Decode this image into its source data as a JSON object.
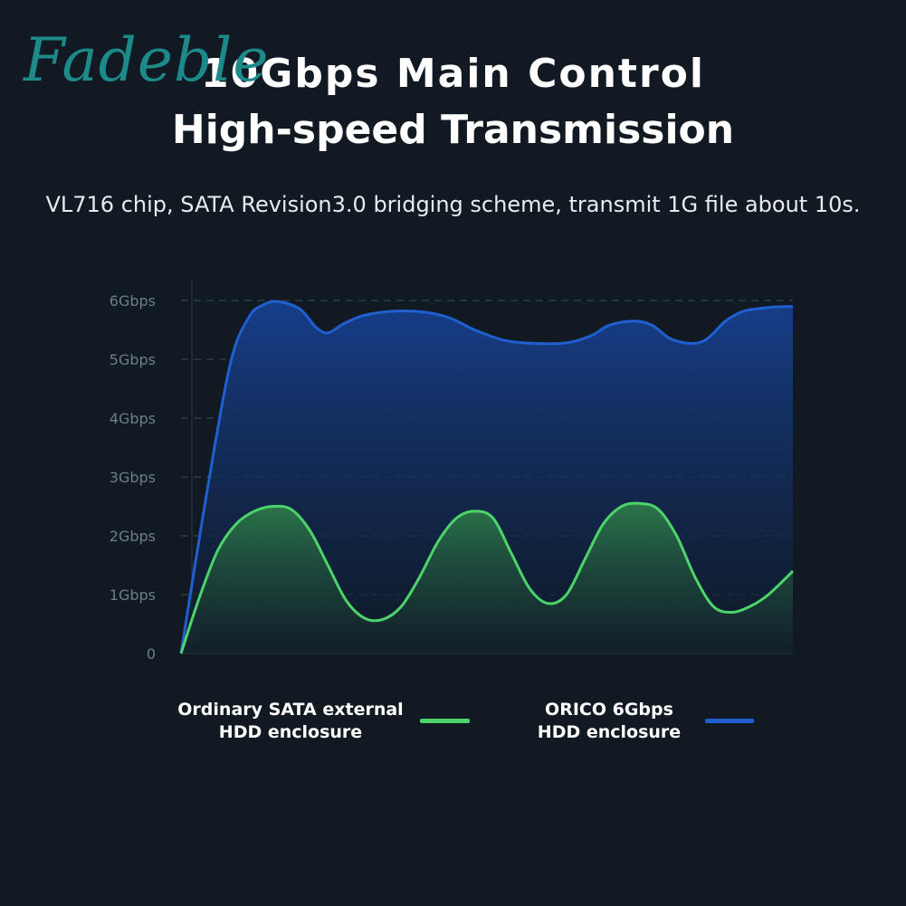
{
  "watermark": "Fadeble",
  "header": {
    "title_line1": "10Gbps Main Control",
    "title_line2": "High-speed Transmission",
    "subtitle": "VL716 chip, SATA Revision3.0 bridging scheme, transmit 1G file about 10s."
  },
  "chart_data": {
    "type": "area",
    "title": "",
    "xlabel": "",
    "ylabel": "",
    "yticks": [
      "0",
      "1Gbps",
      "2Gbps",
      "3Gbps",
      "4Gbps",
      "5Gbps",
      "6Gbps"
    ],
    "ylim": [
      0,
      6
    ],
    "xlim": [
      0,
      100
    ],
    "grid": true,
    "legend_position": "bottom",
    "series": [
      {
        "name": "ORICO 6Gbps HDD enclosure",
        "color": "#1f5fd0",
        "x": [
          0,
          4,
          8,
          11,
          13.5,
          16,
          19.5,
          22,
          24,
          26.5,
          30,
          35,
          40,
          44,
          48,
          53,
          58,
          63,
          67,
          70,
          74,
          77,
          80,
          83.5,
          86,
          89,
          92,
          96,
          100
        ],
        "y": [
          0,
          2.6,
          4.9,
          5.7,
          5.93,
          5.98,
          5.85,
          5.55,
          5.45,
          5.6,
          5.75,
          5.82,
          5.8,
          5.7,
          5.5,
          5.32,
          5.27,
          5.28,
          5.4,
          5.58,
          5.65,
          5.58,
          5.35,
          5.27,
          5.35,
          5.65,
          5.82,
          5.88,
          5.9
        ]
      },
      {
        "name": "Ordinary SATA external HDD enclosure",
        "color": "#4cd36a",
        "x": [
          0,
          3,
          6,
          9,
          12,
          15,
          18,
          21,
          24,
          27,
          30,
          33,
          36,
          39,
          42,
          45,
          48,
          51,
          54,
          57,
          60,
          63,
          66,
          69,
          72,
          75,
          78,
          81,
          84,
          87,
          90,
          93,
          96,
          100
        ],
        "y": [
          0,
          0.95,
          1.75,
          2.2,
          2.42,
          2.5,
          2.45,
          2.1,
          1.5,
          0.9,
          0.6,
          0.58,
          0.8,
          1.3,
          1.9,
          2.3,
          2.42,
          2.3,
          1.7,
          1.1,
          0.85,
          1.0,
          1.6,
          2.2,
          2.5,
          2.55,
          2.45,
          2.0,
          1.3,
          0.8,
          0.7,
          0.8,
          1.0,
          1.4
        ]
      }
    ]
  },
  "legend": {
    "sata_label_line1": "Ordinary SATA external",
    "sata_label_line2": "HDD enclosure",
    "orico_label_line1": "ORICO 6Gbps",
    "orico_label_line2": "HDD enclosure"
  }
}
